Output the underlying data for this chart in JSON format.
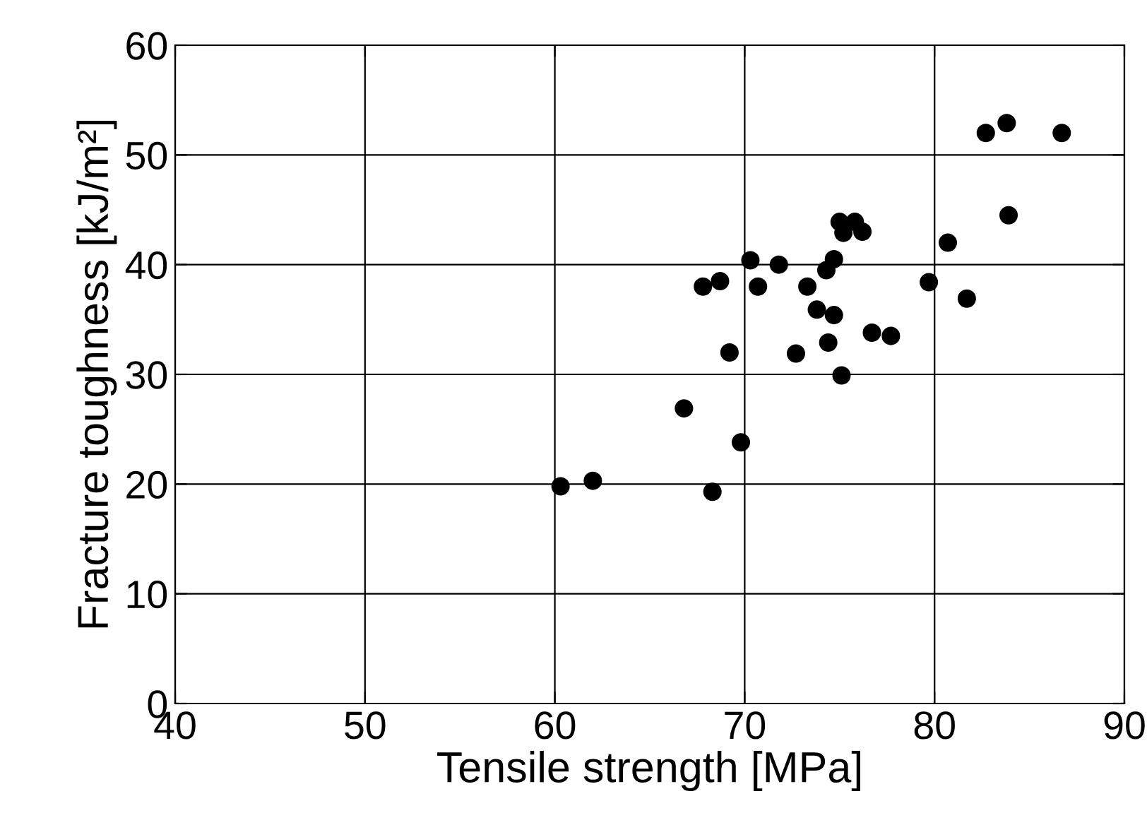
{
  "chart_data": {
    "type": "scatter",
    "xlabel": "Tensile strength [MPa]",
    "ylabel": "Fracture toughness [kJ/m²]",
    "x": [
      60.3,
      62.0,
      66.8,
      67.8,
      68.7,
      68.3,
      69.2,
      69.8,
      70.3,
      70.7,
      71.8,
      72.7,
      73.3,
      73.8,
      74.3,
      74.4,
      74.7,
      74.7,
      75.0,
      75.2,
      75.1,
      75.8,
      76.2,
      76.7,
      77.7,
      79.7,
      80.7,
      81.7,
      82.7,
      83.8,
      83.9,
      86.7
    ],
    "series": [
      {
        "color": "#000000",
        "values": [
          19.8,
          20.3,
          26.9,
          38.0,
          38.5,
          19.3,
          32.0,
          23.8,
          40.4,
          38.0,
          40.0,
          31.9,
          38.0,
          35.9,
          39.5,
          32.9,
          40.5,
          35.4,
          43.9,
          42.9,
          29.9,
          43.9,
          43.0,
          33.8,
          33.5,
          38.4,
          42.0,
          36.9,
          52.0,
          52.9,
          44.5,
          52.0
        ]
      }
    ],
    "xlim": [
      40,
      90
    ],
    "ylim": [
      0,
      60
    ],
    "xticks": [
      40,
      50,
      60,
      70,
      80,
      90
    ],
    "yticks": [
      0,
      10,
      20,
      30,
      40,
      50,
      60
    ],
    "grid": true,
    "marker": "circle"
  }
}
